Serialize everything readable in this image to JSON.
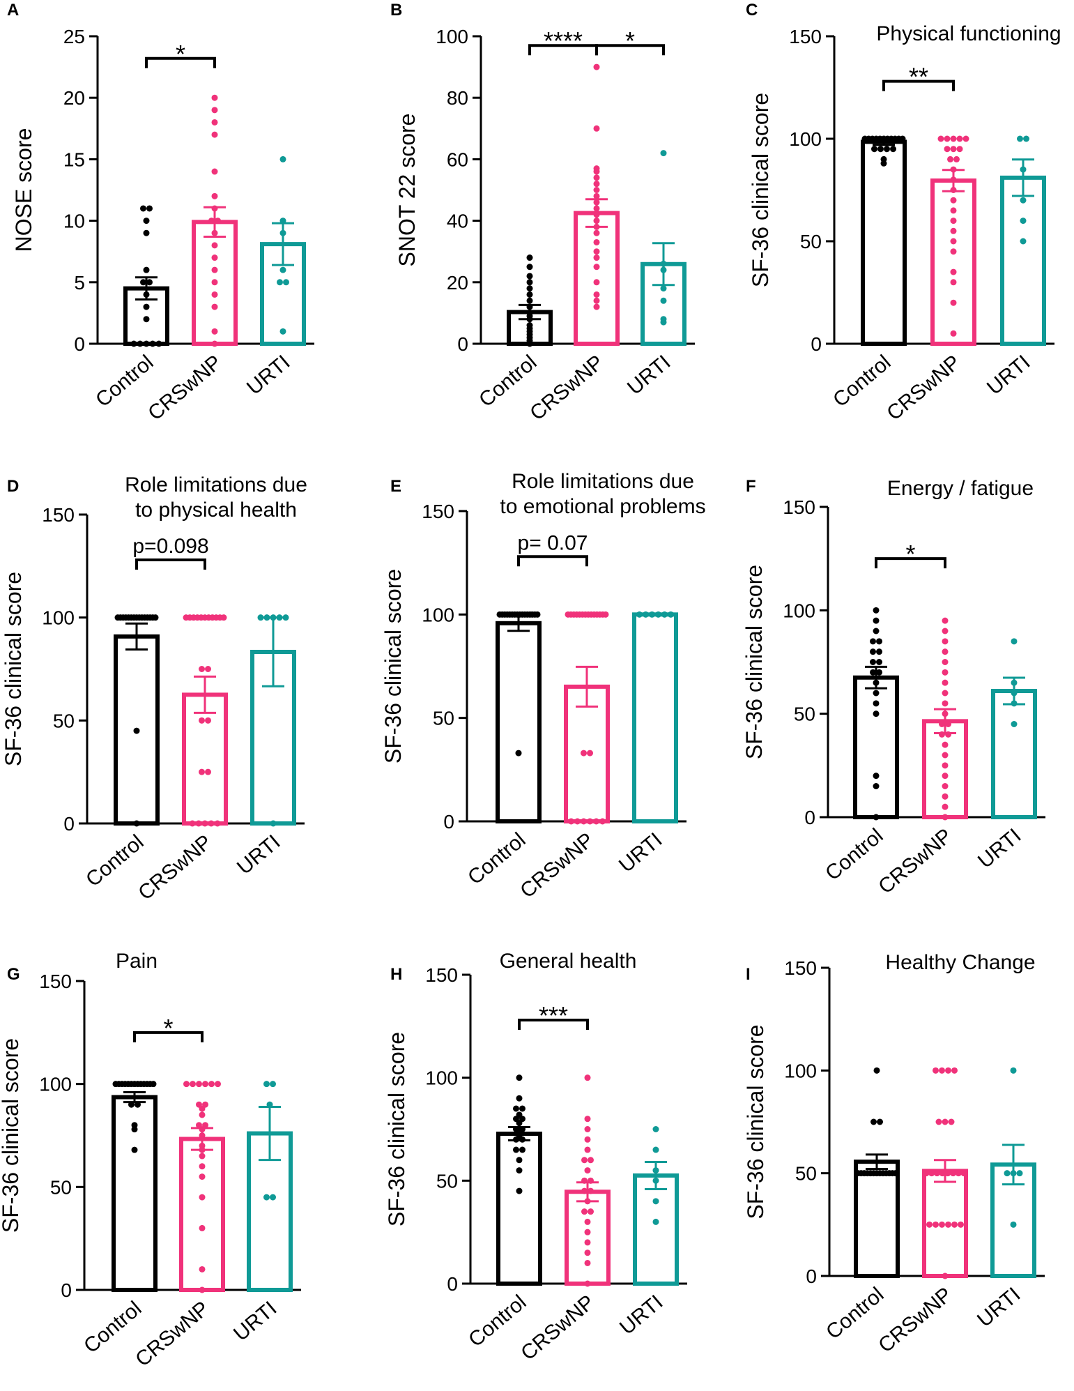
{
  "colors": {
    "Control": "#000000",
    "CRSwNP": "#f0327a",
    "URTI": "#0f9a96"
  },
  "chart_data": [
    {
      "type": "bar",
      "letter": "A",
      "title": "",
      "ylabel": "NOSE score",
      "ylim": [
        0,
        25
      ],
      "yticks": [
        0,
        5,
        10,
        15,
        20,
        25
      ],
      "categories": [
        "Control",
        "CRSwNP",
        "URTI"
      ],
      "means": [
        4.5,
        9.9,
        8.1
      ],
      "sem": [
        0.9,
        1.2,
        1.7
      ],
      "points": [
        [
          0,
          0,
          0,
          0,
          0,
          2,
          3,
          4,
          5,
          5,
          6,
          9,
          10,
          11,
          11
        ],
        [
          0,
          1,
          3,
          4,
          5,
          6,
          7,
          8,
          9,
          10,
          10,
          11,
          12,
          14,
          17,
          18,
          19,
          20
        ],
        [
          1,
          5,
          5,
          6,
          9,
          10,
          15
        ]
      ],
      "significance": [
        {
          "from": 0,
          "to": 1,
          "label": "*",
          "y": 23.2
        }
      ]
    },
    {
      "type": "bar",
      "letter": "B",
      "title": "",
      "ylabel": "SNOT 22 score",
      "ylim": [
        0,
        100
      ],
      "yticks": [
        0,
        20,
        40,
        60,
        80,
        100
      ],
      "categories": [
        "Control",
        "CRSwNP",
        "URTI"
      ],
      "means": [
        10.3,
        42.5,
        25.9
      ],
      "sem": [
        2.3,
        4.5,
        6.8
      ],
      "points": [
        [
          0,
          1,
          2,
          3,
          4,
          5,
          6,
          8,
          9,
          10,
          12,
          14,
          16,
          18,
          20,
          22,
          25,
          28
        ],
        [
          12,
          14,
          16,
          20,
          25,
          28,
          30,
          33,
          36,
          38,
          40,
          42,
          44,
          46,
          48,
          50,
          52,
          54,
          56,
          57,
          70,
          90
        ],
        [
          7,
          8,
          14,
          18,
          24,
          26,
          62
        ]
      ],
      "significance": [
        {
          "from": 0,
          "to": 1,
          "label": "****",
          "y": 97
        },
        {
          "from": 1,
          "to": 2,
          "label": "*",
          "y": 97
        }
      ]
    },
    {
      "type": "bar",
      "letter": "C",
      "title": "Physical functioning",
      "ylabel": "SF-36 clinical score",
      "ylim": [
        0,
        150
      ],
      "yticks": [
        0,
        50,
        100,
        150
      ],
      "categories": [
        "Control",
        "CRSwNP",
        "URTI"
      ],
      "means": [
        98.5,
        79.6,
        81
      ],
      "sem": [
        1.5,
        5.2,
        8.9
      ],
      "points": [
        [
          88,
          90,
          95,
          95,
          95,
          95,
          100,
          100,
          100,
          100,
          100,
          100,
          100,
          100,
          100,
          100,
          100
        ],
        [
          5,
          20,
          30,
          35,
          45,
          50,
          55,
          60,
          65,
          70,
          75,
          80,
          85,
          90,
          90,
          95,
          95,
          95,
          100,
          100,
          100,
          100,
          100
        ],
        [
          50,
          60,
          70,
          85,
          100,
          100
        ]
      ],
      "significance": [
        {
          "from": 0,
          "to": 1,
          "label": "**",
          "y": 128
        }
      ]
    },
    {
      "type": "bar",
      "letter": "D",
      "title": "Role limitations due\nto physical health",
      "ylabel": "SF-36 clinical score",
      "ylim": [
        0,
        150
      ],
      "yticks": [
        0,
        50,
        100,
        150
      ],
      "categories": [
        "Control",
        "CRSwNP",
        "URTI"
      ],
      "means": [
        90.8,
        62.5,
        83.3
      ],
      "sem": [
        6.3,
        8.8,
        16.7
      ],
      "points": [
        [
          0,
          45,
          100,
          100,
          100,
          100,
          100,
          100,
          100,
          100,
          100,
          100,
          100,
          100,
          100,
          100,
          100
        ],
        [
          0,
          0,
          0,
          0,
          0,
          25,
          25,
          50,
          50,
          75,
          75,
          100,
          100,
          100,
          100,
          100,
          100,
          100,
          100,
          100,
          100,
          100
        ],
        [
          0,
          100,
          100,
          100,
          100,
          100
        ]
      ],
      "significance": [
        {
          "from": 0,
          "to": 1,
          "label": "p=0.098",
          "y": 128
        }
      ]
    },
    {
      "type": "bar",
      "letter": "E",
      "title": "Role limitations due\nto emotional problems",
      "ylabel": "SF-36 clinical score",
      "ylim": [
        0,
        150
      ],
      "yticks": [
        0,
        50,
        100,
        150
      ],
      "categories": [
        "Control",
        "CRSwNP",
        "URTI"
      ],
      "means": [
        95.8,
        65.1,
        100
      ],
      "sem": [
        3.7,
        9.6,
        0
      ],
      "points": [
        [
          33,
          100,
          100,
          100,
          100,
          100,
          100,
          100,
          100,
          100,
          100,
          100,
          100,
          100,
          100,
          100,
          100
        ],
        [
          0,
          0,
          0,
          0,
          0,
          0,
          33,
          33,
          100,
          100,
          100,
          100,
          100,
          100,
          100,
          100,
          100,
          100,
          100,
          100,
          100,
          100
        ],
        [
          100,
          100,
          100,
          100,
          100,
          100
        ]
      ],
      "significance": [
        {
          "from": 0,
          "to": 1,
          "label": "p= 0.07",
          "y": 128
        }
      ]
    },
    {
      "type": "bar",
      "letter": "F",
      "title": "Energy / fatigue",
      "ylabel": "SF-36 clinical score",
      "ylim": [
        0,
        150
      ],
      "yticks": [
        0,
        50,
        100,
        150
      ],
      "categories": [
        "Control",
        "CRSwNP",
        "URTI"
      ],
      "means": [
        67.5,
        46.4,
        61
      ],
      "sem": [
        5.2,
        5.8,
        6.4
      ],
      "points": [
        [
          0,
          15,
          20,
          50,
          55,
          60,
          65,
          70,
          70,
          75,
          75,
          80,
          80,
          85,
          85,
          90,
          95,
          100
        ],
        [
          0,
          5,
          10,
          15,
          20,
          25,
          30,
          35,
          40,
          40,
          45,
          45,
          50,
          55,
          60,
          65,
          70,
          75,
          80,
          85,
          90,
          95
        ],
        [
          45,
          55,
          60,
          65,
          85
        ]
      ],
      "significance": [
        {
          "from": 0,
          "to": 1,
          "label": "*",
          "y": 125
        }
      ]
    },
    {
      "type": "bar",
      "letter": "G",
      "title": "Pain",
      "ylabel": "SF-36 clinical score",
      "ylim": [
        0,
        150
      ],
      "yticks": [
        0,
        50,
        100,
        150
      ],
      "categories": [
        "Control",
        "CRSwNP",
        "URTI"
      ],
      "means": [
        93.6,
        73.3,
        76
      ],
      "sem": [
        2.4,
        5.3,
        12.9
      ],
      "points": [
        [
          68,
          78,
          80,
          90,
          90,
          100,
          100,
          100,
          100,
          100,
          100,
          100,
          100,
          100,
          100,
          100,
          100,
          100
        ],
        [
          0,
          10,
          30,
          45,
          55,
          60,
          65,
          68,
          70,
          75,
          78,
          80,
          80,
          85,
          88,
          90,
          90,
          100,
          100,
          100,
          100,
          100,
          100
        ],
        [
          45,
          45,
          90,
          100,
          100
        ]
      ],
      "significance": [
        {
          "from": 0,
          "to": 1,
          "label": "*",
          "y": 125
        }
      ]
    },
    {
      "type": "bar",
      "letter": "H",
      "title": "General health",
      "ylabel": "SF-36 clinical score",
      "ylim": [
        0,
        150
      ],
      "yticks": [
        0,
        50,
        100,
        150
      ],
      "categories": [
        "Control",
        "CRSwNP",
        "URTI"
      ],
      "means": [
        72.8,
        44.6,
        52.5
      ],
      "sem": [
        3.2,
        4.6,
        6.6
      ],
      "points": [
        [
          45,
          55,
          60,
          65,
          65,
          70,
          70,
          72,
          75,
          75,
          78,
          80,
          80,
          82,
          85,
          85,
          90,
          100
        ],
        [
          0,
          10,
          15,
          20,
          25,
          30,
          35,
          35,
          40,
          45,
          45,
          50,
          50,
          55,
          60,
          60,
          65,
          70,
          75,
          80,
          100
        ],
        [
          30,
          40,
          50,
          55,
          65,
          75
        ]
      ],
      "significance": [
        {
          "from": 0,
          "to": 1,
          "label": "***",
          "y": 128
        }
      ]
    },
    {
      "type": "bar",
      "letter": "I",
      "title": "Healthy Change",
      "ylabel": "SF-36 clinical score",
      "ylim": [
        0,
        150
      ],
      "yticks": [
        0,
        50,
        100,
        150
      ],
      "categories": [
        "Control",
        "CRSwNP",
        "URTI"
      ],
      "means": [
        55.6,
        51.1,
        54.2
      ],
      "sem": [
        3.5,
        5.3,
        9.6
      ],
      "points": [
        [
          50,
          50,
          50,
          50,
          50,
          50,
          50,
          50,
          50,
          50,
          50,
          50,
          50,
          75,
          75,
          100
        ],
        [
          0,
          25,
          25,
          25,
          25,
          25,
          25,
          50,
          50,
          50,
          50,
          50,
          50,
          50,
          50,
          75,
          75,
          75,
          100,
          100,
          100,
          100
        ],
        [
          25,
          50,
          50,
          50,
          100
        ]
      ],
      "significance": []
    }
  ]
}
